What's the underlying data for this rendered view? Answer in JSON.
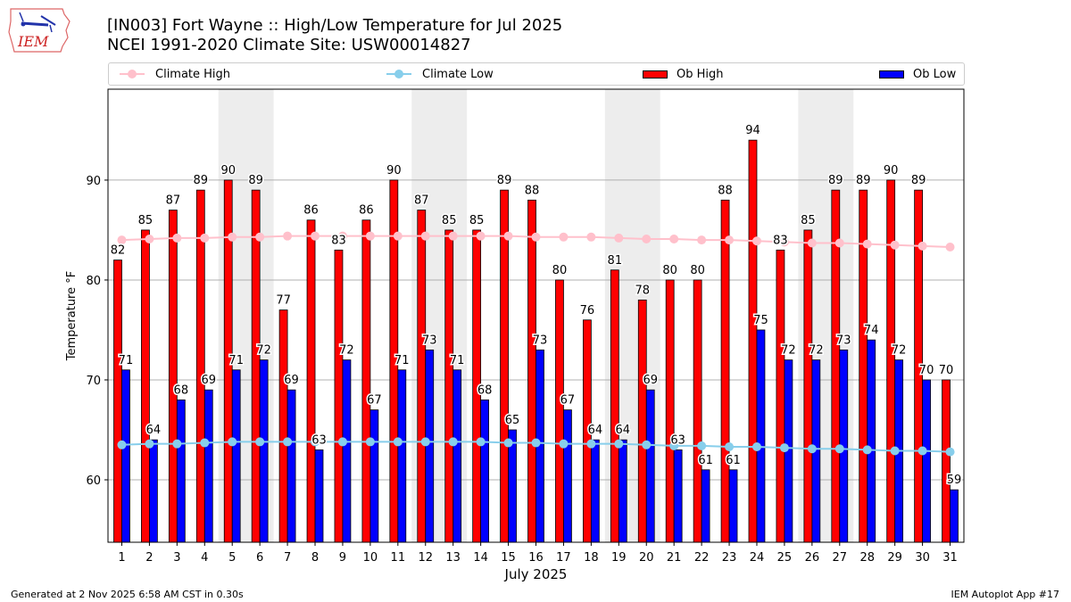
{
  "header": {
    "logo_text": "IEM",
    "title_line1": "[IN003] Fort Wayne :: High/Low Temperature for Jul 2025",
    "title_line2": "NCEI 1991-2020 Climate Site: USW00014827"
  },
  "footer": {
    "generated": "Generated at 2 Nov 2025 6:58 AM CST in 0.30s",
    "app": "IEM Autoplot App #17"
  },
  "colors": {
    "ob_high": "#ff0000",
    "ob_low": "#0000ff",
    "climate_high": "#ffc0cb",
    "climate_low": "#87ceeb",
    "weekend_shade": "#ededed",
    "grid": "#b0b0b0"
  },
  "chart_data": {
    "type": "bar",
    "title": "[IN003] Fort Wayne :: High/Low Temperature for Jul 2025",
    "subtitle": "NCEI 1991-2020 Climate Site: USW00014827",
    "xlabel": "July 2025",
    "ylabel": "Temperature °F",
    "xlim": [
      0.5,
      31.5
    ],
    "ylim": [
      53.75,
      99.1
    ],
    "yticks": [
      60,
      70,
      80,
      90
    ],
    "grid": true,
    "legend_position": "top",
    "legend": [
      "Climate High",
      "Climate Low",
      "Ob High",
      "Ob Low"
    ],
    "categories": [
      1,
      2,
      3,
      4,
      5,
      6,
      7,
      8,
      9,
      10,
      11,
      12,
      13,
      14,
      15,
      16,
      17,
      18,
      19,
      20,
      21,
      22,
      23,
      24,
      25,
      26,
      27,
      28,
      29,
      30,
      31
    ],
    "weekends": [
      [
        5,
        6
      ],
      [
        12,
        13
      ],
      [
        19,
        20
      ],
      [
        26,
        27
      ]
    ],
    "series": [
      {
        "name": "Ob High",
        "kind": "bar",
        "values": [
          82,
          85,
          87,
          89,
          90,
          89,
          77,
          86,
          83,
          86,
          90,
          87,
          85,
          85,
          89,
          88,
          80,
          76,
          81,
          78,
          80,
          80,
          88,
          94,
          83,
          85,
          89,
          89,
          90,
          89,
          70
        ],
        "labels": [
          82,
          85,
          87,
          89,
          90,
          89,
          77,
          86,
          83,
          86,
          90,
          87,
          85,
          85,
          89,
          88,
          80,
          76,
          81,
          78,
          80,
          80,
          88,
          94,
          83,
          85,
          89,
          89,
          90,
          89,
          70
        ]
      },
      {
        "name": "Ob Low",
        "kind": "bar",
        "values": [
          71,
          64,
          68,
          69,
          71,
          72,
          69,
          63,
          72,
          67,
          71,
          73,
          71,
          68,
          65,
          73,
          67,
          64,
          64,
          69,
          63,
          61,
          61,
          75,
          72,
          72,
          73,
          74,
          72,
          70,
          59
        ],
        "labels": [
          71,
          64,
          68,
          69,
          71,
          72,
          69,
          63,
          72,
          67,
          71,
          73,
          71,
          68,
          65,
          73,
          67,
          64,
          64,
          69,
          63,
          61,
          61,
          75,
          72,
          72,
          73,
          74,
          72,
          70,
          59
        ]
      },
      {
        "name": "Climate High",
        "kind": "line",
        "values": [
          84.0,
          84.1,
          84.2,
          84.2,
          84.3,
          84.3,
          84.4,
          84.4,
          84.4,
          84.4,
          84.4,
          84.4,
          84.4,
          84.4,
          84.4,
          84.3,
          84.3,
          84.3,
          84.2,
          84.1,
          84.1,
          84.0,
          84.0,
          83.9,
          83.8,
          83.7,
          83.7,
          83.6,
          83.5,
          83.4,
          83.3
        ]
      },
      {
        "name": "Climate Low",
        "kind": "line",
        "values": [
          63.5,
          63.6,
          63.6,
          63.7,
          63.8,
          63.8,
          63.8,
          63.8,
          63.8,
          63.8,
          63.8,
          63.8,
          63.8,
          63.8,
          63.7,
          63.7,
          63.6,
          63.6,
          63.6,
          63.5,
          63.4,
          63.4,
          63.3,
          63.3,
          63.2,
          63.1,
          63.1,
          63.0,
          62.9,
          62.9,
          62.8
        ]
      }
    ]
  }
}
